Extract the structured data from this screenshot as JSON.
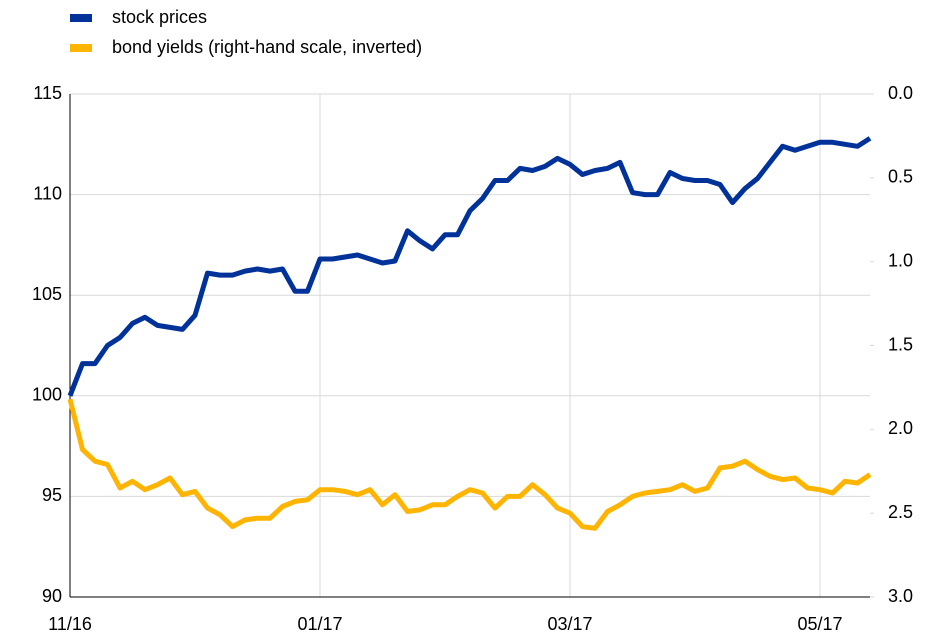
{
  "chart_data": {
    "type": "line",
    "categories": [
      "11/16",
      null,
      null,
      null,
      null,
      null,
      null,
      null,
      null,
      null,
      null,
      null,
      null,
      null,
      null,
      null,
      null,
      null,
      null,
      null,
      "01/17",
      null,
      null,
      null,
      null,
      null,
      null,
      null,
      null,
      null,
      null,
      null,
      null,
      null,
      null,
      null,
      null,
      null,
      null,
      null,
      "03/17",
      null,
      null,
      null,
      null,
      null,
      null,
      null,
      null,
      null,
      null,
      null,
      null,
      null,
      null,
      null,
      null,
      null,
      null,
      null,
      "05/17",
      null,
      null,
      null,
      null
    ],
    "series": [
      {
        "name": "stock prices",
        "color": "#003299",
        "values": [
          100,
          101.6,
          101.6,
          102.5,
          102.9,
          103.6,
          103.9,
          103.5,
          103.4,
          103.3,
          104.0,
          106.1,
          106.0,
          106.0,
          106.2,
          106.3,
          106.2,
          106.3,
          105.2,
          105.2,
          106.8,
          106.8,
          106.9,
          107.0,
          106.8,
          106.6,
          106.7,
          108.2,
          107.7,
          107.3,
          108.0,
          108.0,
          109.2,
          109.8,
          110.7,
          110.7,
          111.3,
          111.2,
          111.4,
          111.8,
          111.5,
          111.0,
          111.2,
          111.3,
          111.6,
          110.1,
          110.0,
          110.0,
          111.1,
          110.8,
          110.7,
          110.7,
          110.5,
          109.6,
          110.3,
          110.8,
          111.6,
          112.4,
          112.2,
          112.4,
          112.6,
          112.6,
          112.5,
          112.4,
          112.8
        ]
      },
      {
        "name": "bond yields (right-hand scale, inverted)",
        "color": "#ffb400",
        "axis": "y2",
        "values": [
          1.82,
          2.12,
          2.19,
          2.21,
          2.35,
          2.31,
          2.36,
          2.33,
          2.29,
          2.39,
          2.37,
          2.47,
          2.51,
          2.58,
          2.54,
          2.53,
          2.53,
          2.46,
          2.43,
          2.42,
          2.36,
          2.36,
          2.37,
          2.39,
          2.36,
          2.45,
          2.39,
          2.49,
          2.48,
          2.45,
          2.45,
          2.4,
          2.36,
          2.38,
          2.47,
          2.4,
          2.4,
          2.33,
          2.39,
          2.47,
          2.5,
          2.58,
          2.59,
          2.49,
          2.45,
          2.4,
          2.38,
          2.37,
          2.36,
          2.33,
          2.37,
          2.35,
          2.23,
          2.22,
          2.19,
          2.24,
          2.28,
          2.3,
          2.29,
          2.35,
          2.36,
          2.38,
          2.31,
          2.32,
          2.27
        ]
      }
    ],
    "ylim": [
      90,
      115
    ],
    "yticks": [
      90,
      95,
      100,
      105,
      110,
      115
    ],
    "y2lim": [
      3.0,
      0.0
    ],
    "y2_inverted": true,
    "y2ticks": [
      {
        "value": 0,
        "label": "0.0"
      },
      0.5,
      {
        "value": 1,
        "label": "1.0"
      },
      1.5,
      {
        "value": 2,
        "label": "2.0"
      },
      2.5,
      {
        "value": 3,
        "label": "3.0"
      }
    ],
    "grid": true,
    "legend": "top-left"
  }
}
